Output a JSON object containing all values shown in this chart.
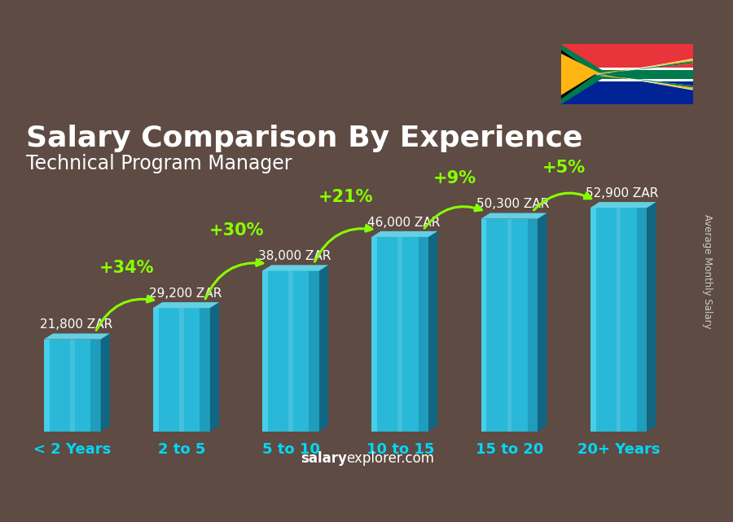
{
  "title": "Salary Comparison By Experience",
  "subtitle": "Technical Program Manager",
  "categories": [
    "< 2 Years",
    "2 to 5",
    "5 to 10",
    "10 to 15",
    "15 to 20",
    "20+ Years"
  ],
  "cat_bold": [
    false,
    false,
    false,
    true,
    true,
    true
  ],
  "values": [
    21800,
    29200,
    38000,
    46000,
    50300,
    52900
  ],
  "labels": [
    "21,800 ZAR",
    "29,200 ZAR",
    "38,000 ZAR",
    "46,000 ZAR",
    "50,300 ZAR",
    "52,900 ZAR"
  ],
  "pct_labels": [
    "+34%",
    "+30%",
    "+21%",
    "+9%",
    "+5%"
  ],
  "bar_front": "#29b8d8",
  "bar_light": "#55d8f0",
  "bar_dark": "#1888a8",
  "bar_side": "#0d6888",
  "bar_top": "#66e8ff",
  "bg_color": "#8a7060",
  "overlay_color": "#2a2020",
  "overlay_alpha": 0.45,
  "title_color": "#ffffff",
  "subtitle_color": "#ffffff",
  "label_color": "#ffffff",
  "pct_color": "#88ff00",
  "xtick_color": "#00d8f8",
  "ylabel": "Average Monthly Salary",
  "footer_salary": "salary",
  "footer_rest": "explorer.com",
  "ylim": [
    0,
    62000
  ],
  "bar_width": 0.52,
  "title_fontsize": 26,
  "subtitle_fontsize": 17,
  "label_fontsize": 11,
  "pct_fontsize": 15,
  "xtick_fontsize": 13,
  "figsize": [
    9.0,
    6.41
  ],
  "dpi": 100
}
